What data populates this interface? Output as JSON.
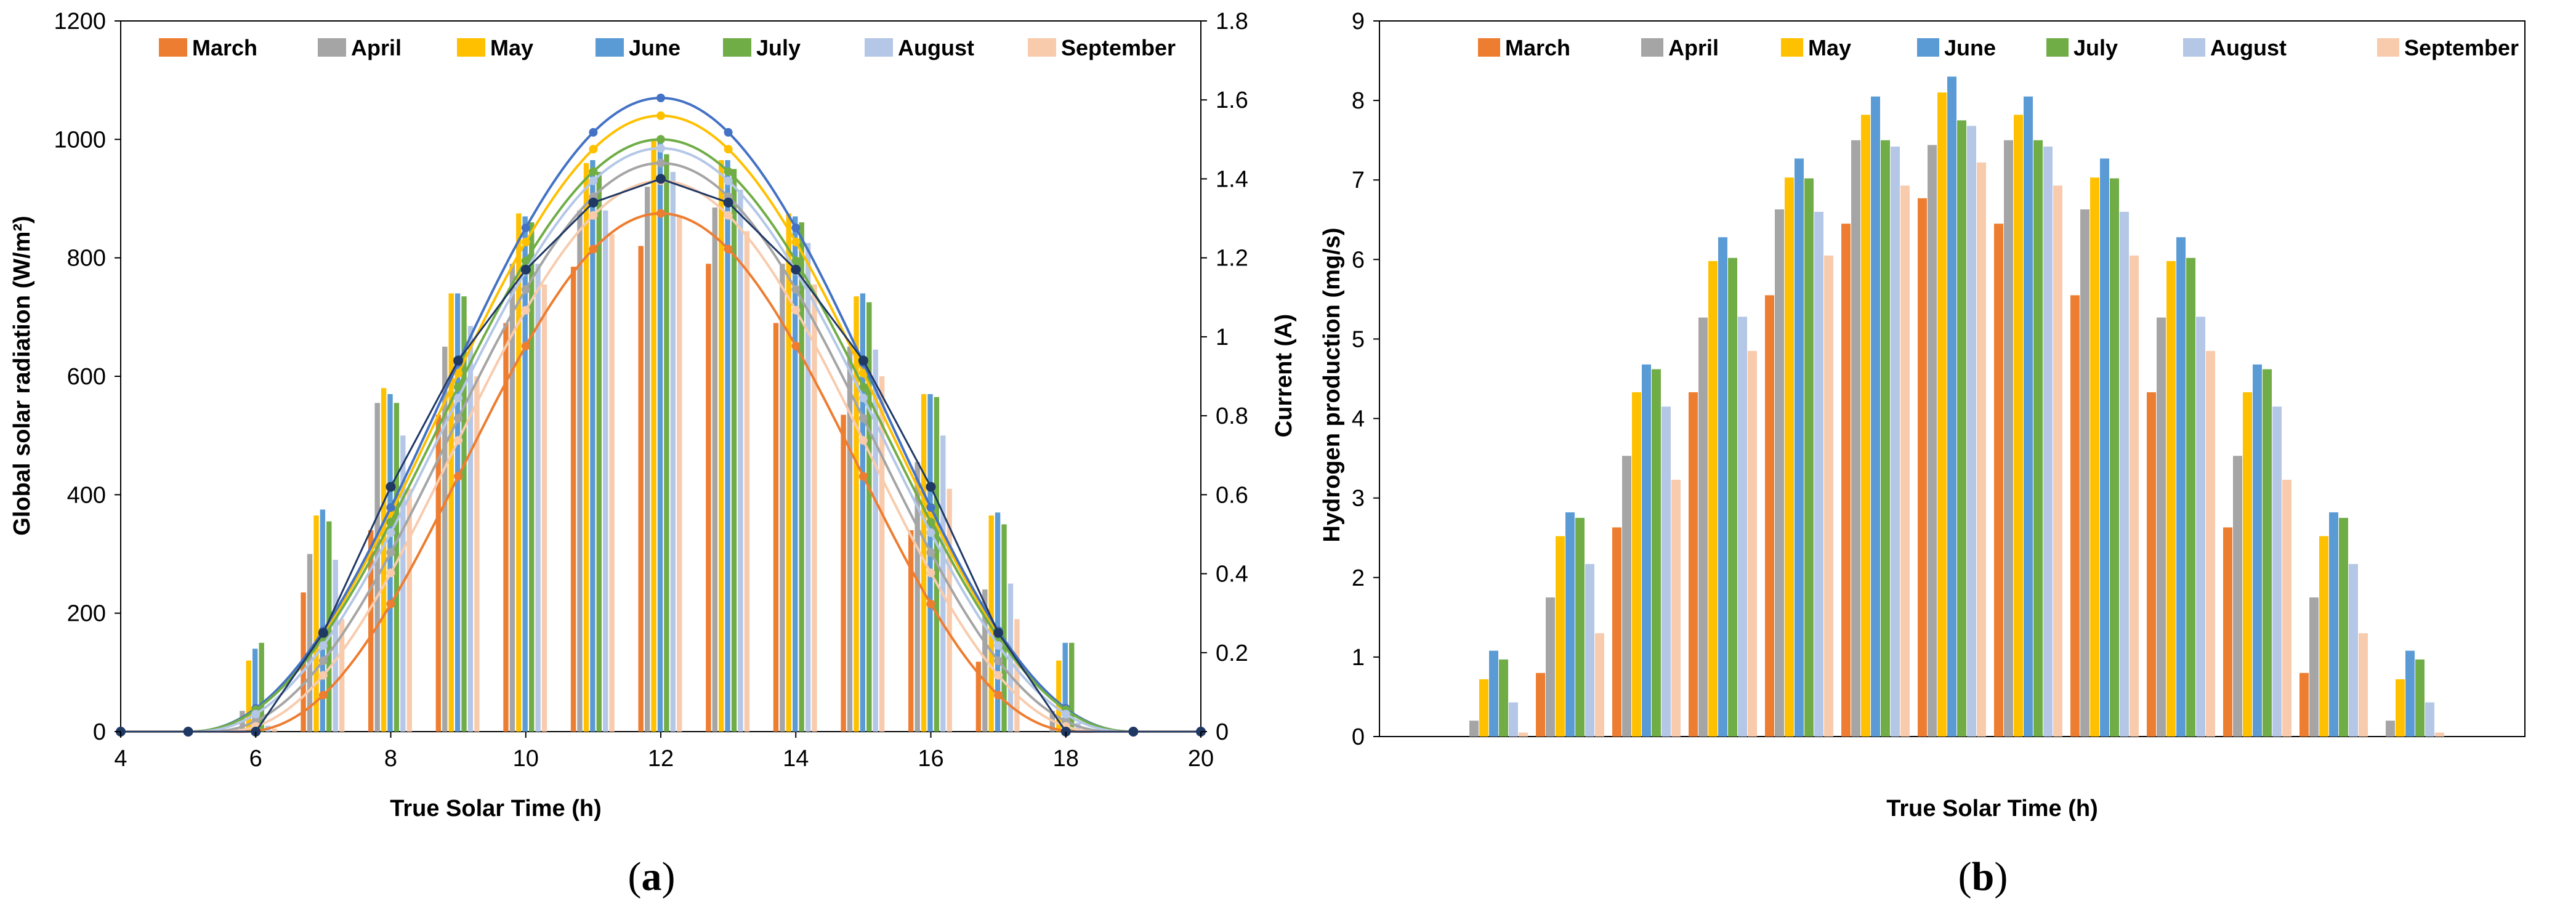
{
  "figure": {
    "series_colors": [
      "#ED7D31",
      "#A5A5A5",
      "#FFC000",
      "#5B9BD5",
      "#70AD47",
      "#B4C7E7",
      "#F8CBAD"
    ],
    "line_colors": [
      "#ED7D31",
      "#A5A5A5",
      "#FFC000",
      "#4472C4",
      "#70AD47",
      "#B4C7E7",
      "#F8CBAD"
    ],
    "current_marker_color": "#1F3864"
  },
  "chart_data": [
    {
      "type": "bar",
      "panel": "a",
      "caption_letter": "a",
      "title": "",
      "xlabel": "True Solar Time (h)",
      "ylabel": "Global solar radiation (W/m²)",
      "y2label": "Current (A)",
      "xlim": [
        4,
        20
      ],
      "ylim": [
        0,
        1200
      ],
      "y2lim": [
        0,
        1.8
      ],
      "xticks": [
        "4",
        "6",
        "8",
        "10",
        "12",
        "14",
        "16",
        "18",
        "20"
      ],
      "yticks": [
        "0",
        "200",
        "400",
        "600",
        "800",
        "1000",
        "1200"
      ],
      "y2ticks": [
        "0",
        "0.2",
        "0.4",
        "0.6",
        "0.8",
        "1",
        "1.2",
        "1.4",
        "1.6",
        "1.8"
      ],
      "legend_position": "top",
      "categories": [
        6,
        7,
        8,
        9,
        10,
        11,
        12,
        13,
        14,
        15,
        16,
        17,
        18
      ],
      "series": [
        {
          "name": "March",
          "values": [
            5,
            235,
            340,
            535,
            690,
            785,
            820,
            790,
            690,
            535,
            340,
            118,
            0
          ]
        },
        {
          "name": "April",
          "values": [
            35,
            300,
            555,
            650,
            790,
            880,
            920,
            885,
            790,
            650,
            455,
            240,
            35
          ]
        },
        {
          "name": "May",
          "values": [
            120,
            365,
            580,
            740,
            875,
            960,
            1000,
            965,
            875,
            735,
            570,
            365,
            120
          ]
        },
        {
          "name": "June",
          "values": [
            140,
            375,
            570,
            740,
            870,
            965,
            995,
            965,
            870,
            740,
            570,
            370,
            150
          ]
        },
        {
          "name": "July",
          "values": [
            150,
            355,
            555,
            735,
            860,
            945,
            975,
            950,
            860,
            725,
            565,
            350,
            150
          ]
        },
        {
          "name": "August",
          "values": [
            10,
            290,
            500,
            685,
            790,
            880,
            945,
            915,
            825,
            645,
            500,
            250,
            15
          ]
        },
        {
          "name": "September",
          "values": [
            5,
            190,
            410,
            600,
            755,
            840,
            870,
            845,
            755,
            600,
            410,
            190,
            5
          ]
        }
      ],
      "radiation_curves": [
        {
          "name": "March",
          "peak": 875,
          "start": 5.8,
          "end": 18.2
        },
        {
          "name": "April",
          "peak": 960,
          "start": 5.3,
          "end": 18.7
        },
        {
          "name": "May",
          "peak": 1040,
          "start": 5.0,
          "end": 19.0
        },
        {
          "name": "June",
          "peak": 1070,
          "start": 5.0,
          "end": 19.0
        },
        {
          "name": "July",
          "peak": 1000,
          "start": 5.0,
          "end": 19.0
        },
        {
          "name": "August",
          "peak": 985,
          "start": 5.1,
          "end": 18.9
        },
        {
          "name": "September",
          "peak": 930,
          "start": 5.5,
          "end": 18.5
        }
      ],
      "current_curve": {
        "name": "Current",
        "x": [
          4,
          5,
          6,
          7,
          8,
          9,
          10,
          11,
          12,
          13,
          14,
          15,
          16,
          17,
          18,
          19,
          20
        ],
        "values": [
          0,
          0,
          0,
          0.25,
          0.62,
          0.94,
          1.17,
          1.34,
          1.4,
          1.34,
          1.17,
          0.94,
          0.62,
          0.25,
          0,
          0,
          0
        ]
      }
    },
    {
      "type": "bar",
      "panel": "b",
      "caption_letter": "b",
      "title": "",
      "xlabel": "True Solar Time (h)",
      "ylabel": "Hydrogen production (mg/s)",
      "ylim": [
        0,
        9
      ],
      "yticks": [
        "0",
        "1",
        "2",
        "3",
        "4",
        "5",
        "6",
        "7",
        "8",
        "9"
      ],
      "legend_position": "top",
      "category_count": 15,
      "series": [
        {
          "name": "March",
          "values": [
            0,
            0,
            0.8,
            2.63,
            4.33,
            5.55,
            6.45,
            6.77,
            6.45,
            5.55,
            4.33,
            2.63,
            0.8,
            0,
            0
          ]
        },
        {
          "name": "April",
          "values": [
            0,
            0.2,
            1.75,
            3.53,
            5.27,
            6.63,
            7.5,
            7.44,
            7.5,
            6.63,
            5.27,
            3.53,
            1.75,
            0.2,
            0
          ]
        },
        {
          "name": "May",
          "values": [
            0,
            0.72,
            2.52,
            4.33,
            5.98,
            7.03,
            7.82,
            8.1,
            7.82,
            7.03,
            5.98,
            4.33,
            2.52,
            0.72,
            0
          ]
        },
        {
          "name": "June",
          "values": [
            0,
            1.08,
            2.82,
            4.68,
            6.28,
            7.27,
            8.05,
            8.3,
            8.05,
            7.27,
            6.28,
            4.68,
            2.82,
            1.08,
            0
          ]
        },
        {
          "name": "July",
          "values": [
            0,
            0.97,
            2.75,
            4.62,
            6.02,
            7.02,
            7.5,
            7.75,
            7.5,
            7.02,
            6.02,
            4.62,
            2.75,
            0.97,
            0
          ]
        },
        {
          "name": "August",
          "values": [
            0,
            0.43,
            2.17,
            4.15,
            5.28,
            6.6,
            7.42,
            7.68,
            7.42,
            6.6,
            5.28,
            4.15,
            2.17,
            0.43,
            0
          ]
        },
        {
          "name": "September",
          "values": [
            0,
            0.05,
            1.3,
            3.23,
            4.85,
            6.05,
            6.93,
            7.22,
            6.93,
            6.05,
            4.85,
            3.23,
            1.3,
            0.05,
            0
          ]
        }
      ]
    }
  ]
}
